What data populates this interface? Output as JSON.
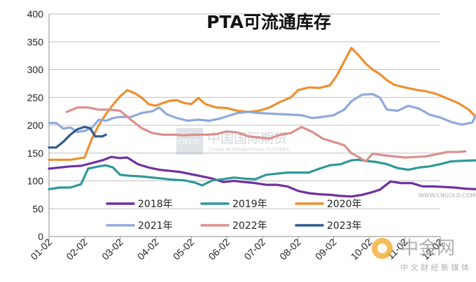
{
  "chart_data": {
    "type": "line",
    "title": "PTA可流通库存",
    "xlabel": "",
    "ylabel": "",
    "x_ticks": [
      "01-02",
      "02-02",
      "03-02",
      "04-02",
      "05-02",
      "06-02",
      "07-02",
      "08-02",
      "09-02",
      "10-02",
      "11-02",
      "12-02"
    ],
    "ylim": [
      0,
      400
    ],
    "y_ticks": [
      0,
      50,
      100,
      150,
      200,
      250,
      300,
      350,
      400
    ],
    "grid": true,
    "legend_position": "bottom-center",
    "series": [
      {
        "name": "2018年",
        "color": "#7030a0",
        "points": [
          [
            0,
            122
          ],
          [
            0.3,
            124
          ],
          [
            0.6,
            126
          ],
          [
            0.9,
            127
          ],
          [
            1.2,
            132
          ],
          [
            1.5,
            137
          ],
          [
            1.75,
            143
          ],
          [
            2.0,
            141
          ],
          [
            2.2,
            142
          ],
          [
            2.5,
            130
          ],
          [
            2.8,
            124
          ],
          [
            3.1,
            120
          ],
          [
            3.4,
            118
          ],
          [
            3.7,
            116
          ],
          [
            4.0,
            112
          ],
          [
            4.3,
            108
          ],
          [
            4.6,
            104
          ],
          [
            4.9,
            98
          ],
          [
            5.2,
            100
          ],
          [
            5.5,
            98
          ],
          [
            5.8,
            96
          ],
          [
            6.1,
            93
          ],
          [
            6.4,
            93
          ],
          [
            6.7,
            90
          ],
          [
            7.0,
            82
          ],
          [
            7.3,
            78
          ],
          [
            7.6,
            76
          ],
          [
            7.9,
            75
          ],
          [
            8.2,
            73
          ],
          [
            8.5,
            72
          ],
          [
            8.8,
            75
          ],
          [
            9.1,
            80
          ],
          [
            9.3,
            84
          ],
          [
            9.6,
            99
          ],
          [
            9.9,
            96
          ],
          [
            10.2,
            96
          ],
          [
            10.5,
            90
          ],
          [
            10.8,
            90
          ],
          [
            11.1,
            89
          ],
          [
            11.4,
            88
          ],
          [
            11.7,
            86
          ],
          [
            12.0,
            85
          ]
        ]
      },
      {
        "name": "2019年",
        "color": "#2e9898",
        "points": [
          [
            0,
            85
          ],
          [
            0.3,
            88
          ],
          [
            0.6,
            88
          ],
          [
            0.9,
            94
          ],
          [
            1.1,
            122
          ],
          [
            1.4,
            126
          ],
          [
            1.6,
            128
          ],
          [
            1.8,
            124
          ],
          [
            2.0,
            111
          ],
          [
            2.3,
            109
          ],
          [
            2.6,
            108
          ],
          [
            2.9,
            106
          ],
          [
            3.2,
            104
          ],
          [
            3.5,
            102
          ],
          [
            3.8,
            101
          ],
          [
            4.1,
            97
          ],
          [
            4.3,
            92
          ],
          [
            4.6,
            101
          ],
          [
            4.9,
            103
          ],
          [
            5.2,
            106
          ],
          [
            5.5,
            104
          ],
          [
            5.8,
            103
          ],
          [
            6.1,
            111
          ],
          [
            6.4,
            113
          ],
          [
            6.7,
            115
          ],
          [
            7.0,
            115
          ],
          [
            7.3,
            115
          ],
          [
            7.6,
            122
          ],
          [
            7.9,
            128
          ],
          [
            8.2,
            130
          ],
          [
            8.5,
            137
          ],
          [
            8.7,
            138
          ],
          [
            8.9,
            136
          ],
          [
            9.2,
            134
          ],
          [
            9.5,
            130
          ],
          [
            9.8,
            123
          ],
          [
            10.1,
            120
          ],
          [
            10.4,
            124
          ],
          [
            10.7,
            126
          ],
          [
            11.0,
            130
          ],
          [
            11.3,
            135
          ],
          [
            11.6,
            136
          ],
          [
            12.0,
            137
          ]
        ]
      },
      {
        "name": "2020年",
        "color": "#ed8f2e",
        "points": [
          [
            0,
            138
          ],
          [
            0.3,
            138
          ],
          [
            0.6,
            138
          ],
          [
            0.8,
            140
          ],
          [
            1.0,
            142
          ],
          [
            1.2,
            175
          ],
          [
            1.4,
            200
          ],
          [
            1.6,
            220
          ],
          [
            1.8,
            237
          ],
          [
            2.0,
            252
          ],
          [
            2.2,
            263
          ],
          [
            2.4,
            258
          ],
          [
            2.6,
            250
          ],
          [
            2.8,
            238
          ],
          [
            3.0,
            235
          ],
          [
            3.2,
            240
          ],
          [
            3.4,
            244
          ],
          [
            3.6,
            245
          ],
          [
            3.8,
            240
          ],
          [
            4.0,
            238
          ],
          [
            4.2,
            249
          ],
          [
            4.4,
            238
          ],
          [
            4.7,
            232
          ],
          [
            5.0,
            231
          ],
          [
            5.3,
            226
          ],
          [
            5.6,
            224
          ],
          [
            5.9,
            226
          ],
          [
            6.2,
            232
          ],
          [
            6.5,
            242
          ],
          [
            6.8,
            250
          ],
          [
            7.0,
            263
          ],
          [
            7.3,
            268
          ],
          [
            7.6,
            267
          ],
          [
            7.9,
            272
          ],
          [
            8.1,
            290
          ],
          [
            8.3,
            315
          ],
          [
            8.5,
            339
          ],
          [
            8.7,
            326
          ],
          [
            8.9,
            311
          ],
          [
            9.1,
            300
          ],
          [
            9.3,
            292
          ],
          [
            9.5,
            281
          ],
          [
            9.7,
            273
          ],
          [
            10.0,
            268
          ],
          [
            10.3,
            264
          ],
          [
            10.6,
            261
          ],
          [
            10.9,
            256
          ],
          [
            11.2,
            248
          ],
          [
            11.5,
            240
          ],
          [
            11.8,
            228
          ],
          [
            12.0,
            215
          ]
        ]
      },
      {
        "name": "2021年",
        "color": "#8fa9dc",
        "points": [
          [
            0,
            204
          ],
          [
            0.2,
            204
          ],
          [
            0.4,
            194
          ],
          [
            0.6,
            196
          ],
          [
            0.8,
            188
          ],
          [
            1.0,
            190
          ],
          [
            1.2,
            195
          ],
          [
            1.4,
            210
          ],
          [
            1.6,
            208
          ],
          [
            1.8,
            213
          ],
          [
            2.0,
            215
          ],
          [
            2.3,
            215
          ],
          [
            2.6,
            222
          ],
          [
            2.9,
            225
          ],
          [
            3.1,
            232
          ],
          [
            3.3,
            220
          ],
          [
            3.6,
            213
          ],
          [
            3.9,
            208
          ],
          [
            4.2,
            210
          ],
          [
            4.5,
            208
          ],
          [
            4.8,
            212
          ],
          [
            5.0,
            216
          ],
          [
            5.3,
            222
          ],
          [
            5.6,
            224
          ],
          [
            5.9,
            222
          ],
          [
            6.2,
            221
          ],
          [
            6.5,
            220
          ],
          [
            6.8,
            219
          ],
          [
            7.1,
            218
          ],
          [
            7.4,
            213
          ],
          [
            7.7,
            215
          ],
          [
            8.0,
            218
          ],
          [
            8.3,
            228
          ],
          [
            8.5,
            243
          ],
          [
            8.8,
            255
          ],
          [
            9.1,
            256
          ],
          [
            9.3,
            250
          ],
          [
            9.5,
            228
          ],
          [
            9.8,
            226
          ],
          [
            10.1,
            235
          ],
          [
            10.4,
            230
          ],
          [
            10.7,
            219
          ],
          [
            11.0,
            214
          ],
          [
            11.3,
            206
          ],
          [
            11.6,
            201
          ],
          [
            11.9,
            205
          ],
          [
            12.0,
            218
          ]
        ]
      },
      {
        "name": "2022年",
        "color": "#dc8f8c",
        "points": [
          [
            0.5,
            224
          ],
          [
            0.8,
            232
          ],
          [
            1.1,
            232
          ],
          [
            1.4,
            228
          ],
          [
            1.7,
            228
          ],
          [
            2.0,
            226
          ],
          [
            2.3,
            210
          ],
          [
            2.6,
            195
          ],
          [
            2.9,
            186
          ],
          [
            3.2,
            183
          ],
          [
            3.5,
            183
          ],
          [
            3.8,
            182
          ],
          [
            4.1,
            183
          ],
          [
            4.4,
            183
          ],
          [
            4.7,
            184
          ],
          [
            5.0,
            189
          ],
          [
            5.3,
            187
          ],
          [
            5.6,
            180
          ],
          [
            5.9,
            178
          ],
          [
            6.2,
            176
          ],
          [
            6.5,
            183
          ],
          [
            6.8,
            186
          ],
          [
            7.1,
            197
          ],
          [
            7.4,
            188
          ],
          [
            7.7,
            176
          ],
          [
            8.0,
            170
          ],
          [
            8.3,
            164
          ],
          [
            8.5,
            150
          ],
          [
            8.7,
            143
          ],
          [
            8.9,
            135
          ],
          [
            9.1,
            149
          ],
          [
            9.4,
            146
          ],
          [
            9.7,
            144
          ],
          [
            10.0,
            142
          ],
          [
            10.3,
            143
          ],
          [
            10.6,
            144
          ],
          [
            10.9,
            148
          ],
          [
            11.2,
            152
          ],
          [
            11.5,
            152
          ],
          [
            11.7,
            153
          ]
        ]
      },
      {
        "name": "2023年",
        "color": "#2f5a8f",
        "points": [
          [
            0,
            160
          ],
          [
            0.2,
            160
          ],
          [
            0.4,
            170
          ],
          [
            0.6,
            183
          ],
          [
            0.8,
            193
          ],
          [
            1.0,
            197
          ],
          [
            1.15,
            195
          ],
          [
            1.3,
            180
          ],
          [
            1.5,
            180
          ],
          [
            1.6,
            183
          ]
        ]
      }
    ]
  },
  "watermarks": {
    "center_cn": "中国国际期货",
    "center_en": "CHINA INTERNATIONAL FUTURES",
    "cifco": "CIFCO",
    "url": "WWW.CNGOLD.COM.CN",
    "logo_main": "中金网",
    "logo_sub": "中 文 财 经 新 媒 体"
  }
}
